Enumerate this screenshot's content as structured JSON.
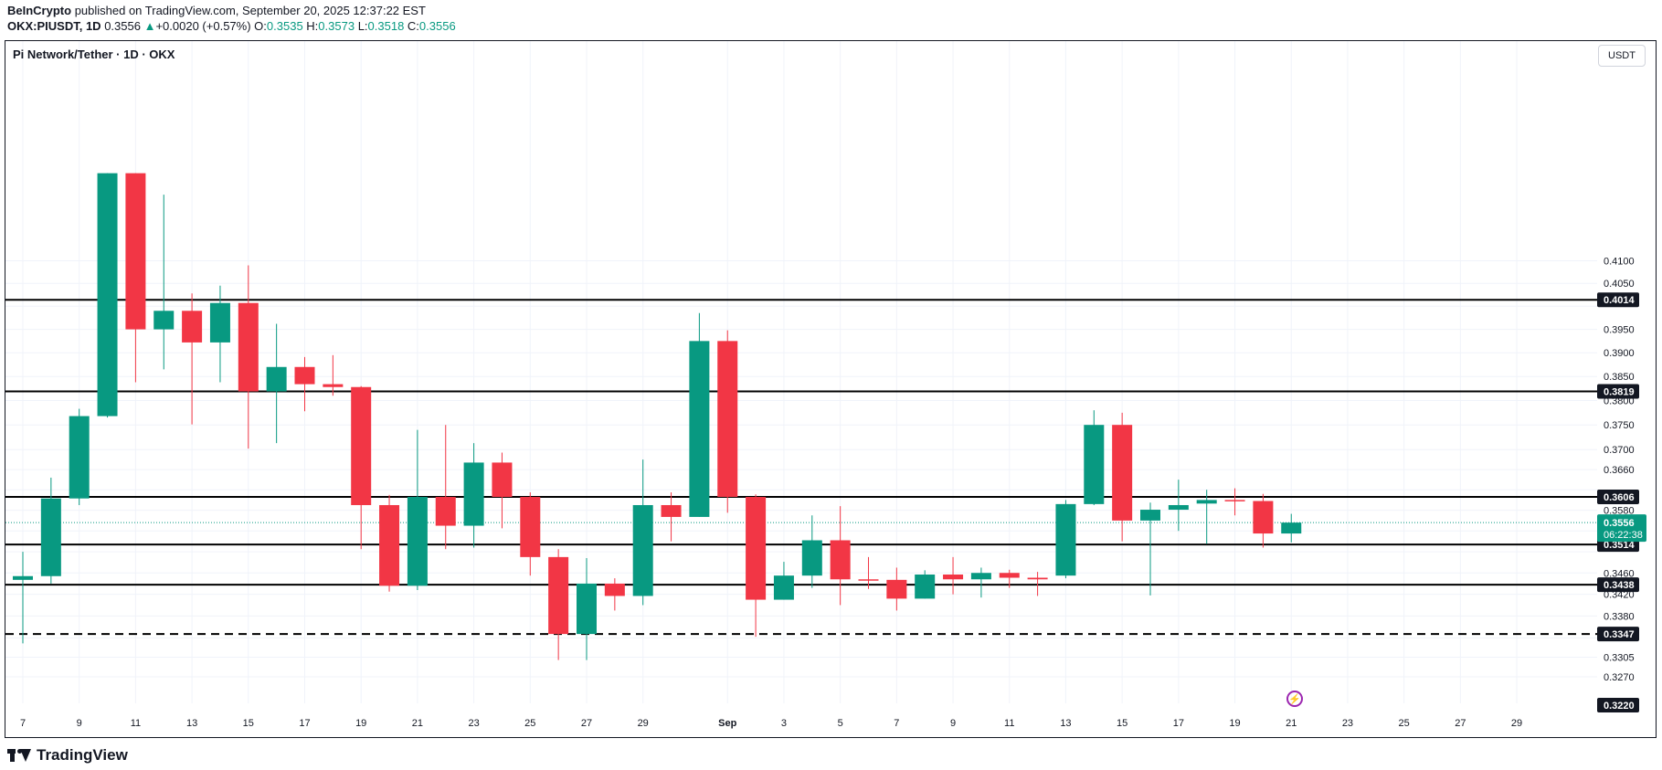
{
  "header": {
    "publisher": "BeInCrypto",
    "published_on": "published on TradingView.com, September 20, 2025 12:37:22 EST",
    "symbol_interval": "OKX:PIUSDT, 1D",
    "last_price": "0.3556",
    "change_arrow": "▲",
    "change": "+0.0020 (+0.57%)",
    "open_label": "O:",
    "open": "0.3535",
    "high_label": "H:",
    "high": "0.3573",
    "low_label": "L:",
    "low": "0.3518",
    "close_label": "C:",
    "close": "0.3556"
  },
  "chart_title": "Pi Network/Tether · 1D · OKX",
  "currency": "USDT",
  "footer": {
    "brand": "TradingView"
  },
  "icons": {
    "alert": "bolt-icon",
    "logo": "tradingview-logo-icon"
  },
  "colors": {
    "up": "#089981",
    "down": "#f23645",
    "line": "#000000",
    "text": "#131722",
    "grid": "#f0f3fa"
  },
  "chart_data": {
    "type": "candlestick",
    "title": "Pi Network/Tether · 1D · OKX",
    "ylim": [
      0.322,
      0.4165
    ],
    "y_scale": "log",
    "y_ticks": [
      "0.3270",
      "0.3305",
      "0.3340",
      "0.3380",
      "0.3420",
      "0.3460",
      "0.3500",
      "0.3540",
      "0.3580",
      "0.3620",
      "0.3660",
      "0.3700",
      "0.3750",
      "0.3800",
      "0.3850",
      "0.3900",
      "0.3950",
      "0.4000",
      "0.4050",
      "0.4100"
    ],
    "x_tick_labels": [
      "7",
      "9",
      "11",
      "13",
      "15",
      "17",
      "19",
      "21",
      "23",
      "25",
      "27",
      "29",
      "Sep",
      "3",
      "5",
      "7",
      "9",
      "11",
      "13",
      "15",
      "17",
      "19",
      "21",
      "23",
      "25",
      "27",
      "29"
    ],
    "x_tick_days": [
      0,
      2,
      4,
      6,
      8,
      10,
      12,
      14,
      16,
      18,
      20,
      22,
      25,
      27,
      29,
      31,
      33,
      35,
      37,
      39,
      41,
      43,
      45,
      47,
      49,
      51,
      53
    ],
    "candles": [
      {
        "date": "Aug 6",
        "o": 0.3447,
        "h": 0.35,
        "l": 0.333,
        "c": 0.3454
      },
      {
        "date": "Aug 7",
        "o": 0.3454,
        "h": 0.3644,
        "l": 0.344,
        "c": 0.3603
      },
      {
        "date": "Aug 8",
        "o": 0.3603,
        "h": 0.3783,
        "l": 0.359,
        "c": 0.3768
      },
      {
        "date": "Aug 9",
        "o": 0.3768,
        "h": 0.43,
        "l": 0.3765,
        "c": 0.43
      },
      {
        "date": "Aug 10",
        "o": 0.43,
        "h": 0.43,
        "l": 0.3838,
        "c": 0.395
      },
      {
        "date": "Aug 11",
        "o": 0.395,
        "h": 0.425,
        "l": 0.3865,
        "c": 0.399
      },
      {
        "date": "Aug 12",
        "o": 0.399,
        "h": 0.4028,
        "l": 0.3751,
        "c": 0.3922
      },
      {
        "date": "Aug 13",
        "o": 0.3922,
        "h": 0.4045,
        "l": 0.3838,
        "c": 0.4007
      },
      {
        "date": "Aug 14",
        "o": 0.4007,
        "h": 0.409,
        "l": 0.3702,
        "c": 0.3819
      },
      {
        "date": "Aug 15",
        "o": 0.3819,
        "h": 0.3962,
        "l": 0.3713,
        "c": 0.387
      },
      {
        "date": "Aug 16",
        "o": 0.387,
        "h": 0.3891,
        "l": 0.3778,
        "c": 0.3834
      },
      {
        "date": "Aug 17",
        "o": 0.3834,
        "h": 0.3895,
        "l": 0.381,
        "c": 0.3828
      },
      {
        "date": "Aug 18",
        "o": 0.3828,
        "h": 0.383,
        "l": 0.3505,
        "c": 0.359
      },
      {
        "date": "Aug 19",
        "o": 0.359,
        "h": 0.361,
        "l": 0.3425,
        "c": 0.3436
      },
      {
        "date": "Aug 20",
        "o": 0.3436,
        "h": 0.374,
        "l": 0.3428,
        "c": 0.3606
      },
      {
        "date": "Aug 21",
        "o": 0.3606,
        "h": 0.375,
        "l": 0.3505,
        "c": 0.355
      },
      {
        "date": "Aug 22",
        "o": 0.355,
        "h": 0.3713,
        "l": 0.3508,
        "c": 0.3674
      },
      {
        "date": "Aug 23",
        "o": 0.3674,
        "h": 0.3694,
        "l": 0.3545,
        "c": 0.3606
      },
      {
        "date": "Aug 24",
        "o": 0.3606,
        "h": 0.3615,
        "l": 0.3455,
        "c": 0.349
      },
      {
        "date": "Aug 25",
        "o": 0.349,
        "h": 0.3505,
        "l": 0.33,
        "c": 0.3347
      },
      {
        "date": "Aug 26",
        "o": 0.3347,
        "h": 0.3488,
        "l": 0.33,
        "c": 0.344
      },
      {
        "date": "Aug 27",
        "o": 0.344,
        "h": 0.345,
        "l": 0.339,
        "c": 0.3417
      },
      {
        "date": "Aug 28",
        "o": 0.3417,
        "h": 0.368,
        "l": 0.34,
        "c": 0.359
      },
      {
        "date": "Aug 29",
        "o": 0.359,
        "h": 0.3615,
        "l": 0.352,
        "c": 0.3567
      },
      {
        "date": "Aug 30",
        "o": 0.3567,
        "h": 0.3985,
        "l": 0.3567,
        "c": 0.3925
      },
      {
        "date": "Aug 31",
        "o": 0.3925,
        "h": 0.3948,
        "l": 0.3575,
        "c": 0.3606
      },
      {
        "date": "Sep 1",
        "o": 0.3606,
        "h": 0.3611,
        "l": 0.3342,
        "c": 0.341
      },
      {
        "date": "Sep 2",
        "o": 0.341,
        "h": 0.3481,
        "l": 0.341,
        "c": 0.3455
      },
      {
        "date": "Sep 3",
        "o": 0.3455,
        "h": 0.357,
        "l": 0.3432,
        "c": 0.3522
      },
      {
        "date": "Sep 4",
        "o": 0.3522,
        "h": 0.3588,
        "l": 0.34,
        "c": 0.3448
      },
      {
        "date": "Sep 5",
        "o": 0.3448,
        "h": 0.349,
        "l": 0.343,
        "c": 0.3447
      },
      {
        "date": "Sep 6",
        "o": 0.3447,
        "h": 0.347,
        "l": 0.339,
        "c": 0.3412
      },
      {
        "date": "Sep 7",
        "o": 0.3412,
        "h": 0.3465,
        "l": 0.3412,
        "c": 0.3457
      },
      {
        "date": "Sep 8",
        "o": 0.3457,
        "h": 0.349,
        "l": 0.342,
        "c": 0.3448
      },
      {
        "date": "Sep 9",
        "o": 0.3448,
        "h": 0.347,
        "l": 0.3414,
        "c": 0.346
      },
      {
        "date": "Sep 10",
        "o": 0.346,
        "h": 0.3466,
        "l": 0.3432,
        "c": 0.3451
      },
      {
        "date": "Sep 11",
        "o": 0.3451,
        "h": 0.3462,
        "l": 0.3417,
        "c": 0.3448
      },
      {
        "date": "Sep 12",
        "o": 0.3455,
        "h": 0.36,
        "l": 0.345,
        "c": 0.3592
      },
      {
        "date": "Sep 13",
        "o": 0.3592,
        "h": 0.378,
        "l": 0.359,
        "c": 0.375
      },
      {
        "date": "Sep 14",
        "o": 0.375,
        "h": 0.3775,
        "l": 0.352,
        "c": 0.356
      },
      {
        "date": "Sep 15",
        "o": 0.356,
        "h": 0.3595,
        "l": 0.3418,
        "c": 0.3581
      },
      {
        "date": "Sep 16",
        "o": 0.3581,
        "h": 0.364,
        "l": 0.354,
        "c": 0.359
      },
      {
        "date": "Sep 17",
        "o": 0.3593,
        "h": 0.362,
        "l": 0.3515,
        "c": 0.36
      },
      {
        "date": "Sep 18",
        "o": 0.36,
        "h": 0.3623,
        "l": 0.357,
        "c": 0.3598
      },
      {
        "date": "Sep 19",
        "o": 0.3598,
        "h": 0.3612,
        "l": 0.3508,
        "c": 0.3535
      },
      {
        "date": "Sep 20",
        "o": 0.3535,
        "h": 0.3573,
        "l": 0.3518,
        "c": 0.3556
      }
    ],
    "horizontal_lines": [
      {
        "value": 0.4014,
        "label": "0.4014",
        "style": "solid"
      },
      {
        "value": 0.3819,
        "label": "0.3819",
        "style": "solid"
      },
      {
        "value": 0.3606,
        "label": "0.3606",
        "style": "solid"
      },
      {
        "value": 0.3514,
        "label": "0.3514",
        "style": "solid"
      },
      {
        "value": 0.3438,
        "label": "0.3438",
        "style": "solid"
      },
      {
        "value": 0.3347,
        "label": "0.3347",
        "style": "dashed"
      }
    ],
    "bottom_label": "0.3220",
    "current_price": {
      "value": 0.3556,
      "label": "0.3556",
      "countdown": "06:22:38"
    },
    "grid": true
  }
}
